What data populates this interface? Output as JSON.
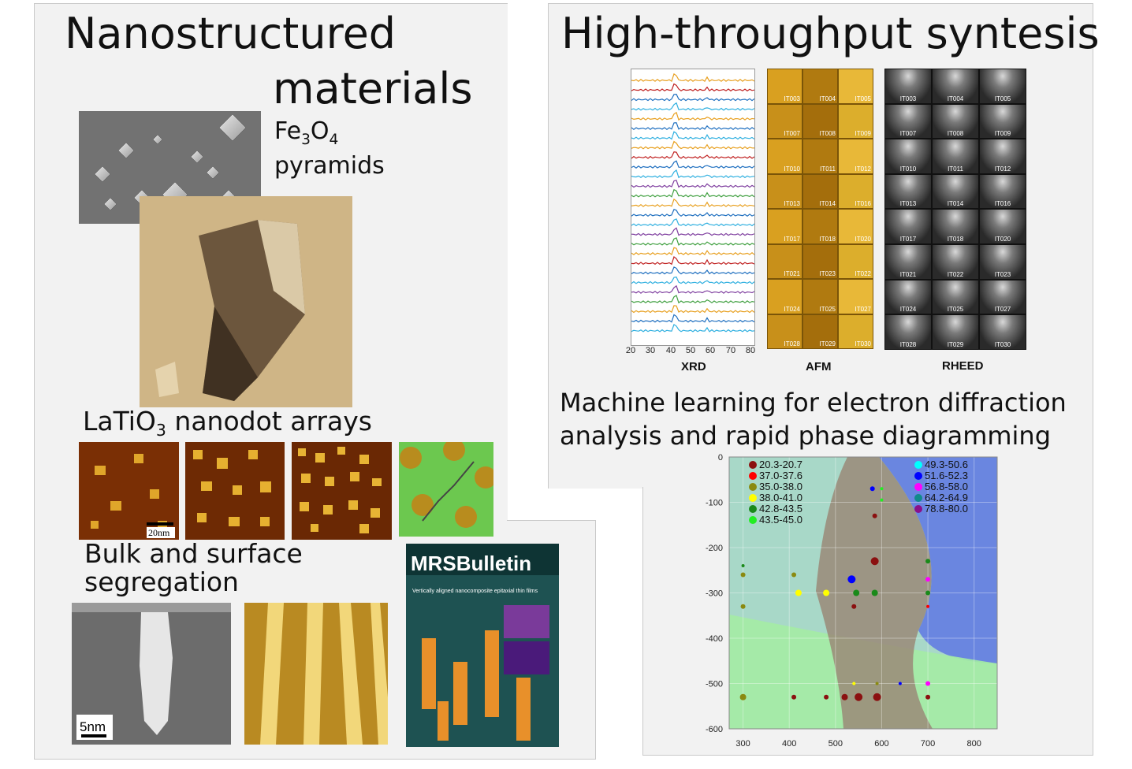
{
  "left": {
    "title_line1": "Nanostructured",
    "title_line2": "materials",
    "fe_label_a": "Fe",
    "fe_label_b": "3",
    "fe_label_c": "O",
    "fe_label_d": "4",
    "fe_label_line2": "pyramids",
    "latio_a": "LaTiO",
    "latio_b": "3",
    "latio_c": " nanodot arrays",
    "scale_20nm": "20nm",
    "bulk_line1": "Bulk and surface",
    "bulk_line2": "segregation",
    "scale_5nm": "5nm",
    "mrs_title": "MRSBulletin",
    "mrs_headline": "Vertically aligned nanocomposite epitaxial thin films"
  },
  "right": {
    "title": "High-throughput syntesis",
    "xrd_label": "XRD",
    "afm_label": "AFM",
    "rheed_label": "RHEED",
    "xrd_ticks": [
      "20",
      "30",
      "40",
      "50",
      "60",
      "70",
      "80"
    ],
    "afm_tiles": [
      "IT003",
      "IT004",
      "IT005",
      "IT007",
      "IT008",
      "IT009",
      "IT010",
      "IT011",
      "IT012",
      "IT013",
      "IT014",
      "IT016",
      "IT017",
      "IT018",
      "IT020",
      "IT021",
      "IT023",
      "IT022",
      "IT024",
      "IT025",
      "IT027",
      "IT028",
      "IT029",
      "IT030"
    ],
    "rheed_tiles": [
      "IT003",
      "IT004",
      "IT005",
      "IT007",
      "IT008",
      "IT009",
      "IT010",
      "IT011",
      "IT012",
      "IT013",
      "IT014",
      "IT016",
      "IT017",
      "IT018",
      "IT020",
      "IT021",
      "IT022",
      "IT023",
      "IT024",
      "IT025",
      "IT027",
      "IT028",
      "IT029",
      "IT030"
    ],
    "ml_line1": "Machine learning for electron diffraction",
    "ml_line2": "analysis and rapid phase diagramming"
  },
  "chart_data": {
    "type": "scatter",
    "title": "",
    "xlabel": "",
    "ylabel": "",
    "xlim": [
      270,
      850
    ],
    "ylim": [
      -600,
      0
    ],
    "xticks": [
      "300",
      "400",
      "500",
      "600",
      "700",
      "800"
    ],
    "yticks": [
      "0",
      "-100",
      "-200",
      "-300",
      "-400",
      "-500",
      "-600"
    ],
    "legend_position": "top-left and top-right",
    "legend": [
      {
        "name": "20.3-20.7",
        "color": "#8b1010"
      },
      {
        "name": "37.0-37.6",
        "color": "#ff0000"
      },
      {
        "name": "35.0-38.0",
        "color": "#8a8a10"
      },
      {
        "name": "38.0-41.0",
        "color": "#ffff00"
      },
      {
        "name": "42.8-43.5",
        "color": "#1a8a1a"
      },
      {
        "name": "43.5-45.0",
        "color": "#22ee22"
      },
      {
        "name": "49.3-50.6",
        "color": "#00ffff"
      },
      {
        "name": "51.6-52.3",
        "color": "#0000ff"
      },
      {
        "name": "56.8-58.0",
        "color": "#ff00ff"
      },
      {
        "name": "64.2-64.9",
        "color": "#108a8a"
      },
      {
        "name": "78.8-80.0",
        "color": "#8a108a"
      }
    ],
    "points": [
      {
        "x": 580,
        "y": -70,
        "c": "#0000ff",
        "s": 3
      },
      {
        "x": 600,
        "y": -70,
        "c": "#22ee22",
        "s": 2
      },
      {
        "x": 585,
        "y": -130,
        "c": "#8b1010",
        "s": 3
      },
      {
        "x": 600,
        "y": -95,
        "c": "#22ee22",
        "s": 2
      },
      {
        "x": 300,
        "y": -240,
        "c": "#1a8a1a",
        "s": 2
      },
      {
        "x": 300,
        "y": -260,
        "c": "#8a8a10",
        "s": 3
      },
      {
        "x": 410,
        "y": -260,
        "c": "#8a8a10",
        "s": 3
      },
      {
        "x": 585,
        "y": -230,
        "c": "#8b1010",
        "s": 5
      },
      {
        "x": 535,
        "y": -270,
        "c": "#0000ff",
        "s": 5
      },
      {
        "x": 420,
        "y": -300,
        "c": "#ffff00",
        "s": 4
      },
      {
        "x": 480,
        "y": -300,
        "c": "#ffff00",
        "s": 4
      },
      {
        "x": 545,
        "y": -300,
        "c": "#1a8a1a",
        "s": 4
      },
      {
        "x": 585,
        "y": -300,
        "c": "#1a8a1a",
        "s": 4
      },
      {
        "x": 700,
        "y": -270,
        "c": "#ff00ff",
        "s": 3
      },
      {
        "x": 700,
        "y": -300,
        "c": "#1a8a1a",
        "s": 3
      },
      {
        "x": 700,
        "y": -230,
        "c": "#1a8a1a",
        "s": 3
      },
      {
        "x": 540,
        "y": -330,
        "c": "#8b1010",
        "s": 3
      },
      {
        "x": 300,
        "y": -330,
        "c": "#8a8a10",
        "s": 3
      },
      {
        "x": 700,
        "y": -330,
        "c": "#ff0000",
        "s": 2
      },
      {
        "x": 590,
        "y": -530,
        "c": "#8b1010",
        "s": 5
      },
      {
        "x": 550,
        "y": -530,
        "c": "#8b1010",
        "s": 5
      },
      {
        "x": 520,
        "y": -530,
        "c": "#8b1010",
        "s": 4
      },
      {
        "x": 480,
        "y": -530,
        "c": "#8b1010",
        "s": 3
      },
      {
        "x": 410,
        "y": -530,
        "c": "#8b1010",
        "s": 3
      },
      {
        "x": 300,
        "y": -530,
        "c": "#8a8a10",
        "s": 4
      },
      {
        "x": 700,
        "y": -530,
        "c": "#8b1010",
        "s": 3
      },
      {
        "x": 700,
        "y": -500,
        "c": "#ff00ff",
        "s": 3
      },
      {
        "x": 640,
        "y": -500,
        "c": "#0000ff",
        "s": 2
      },
      {
        "x": 590,
        "y": -500,
        "c": "#8a8a10",
        "s": 2
      },
      {
        "x": 540,
        "y": -500,
        "c": "#ffff00",
        "s": 2
      }
    ]
  }
}
